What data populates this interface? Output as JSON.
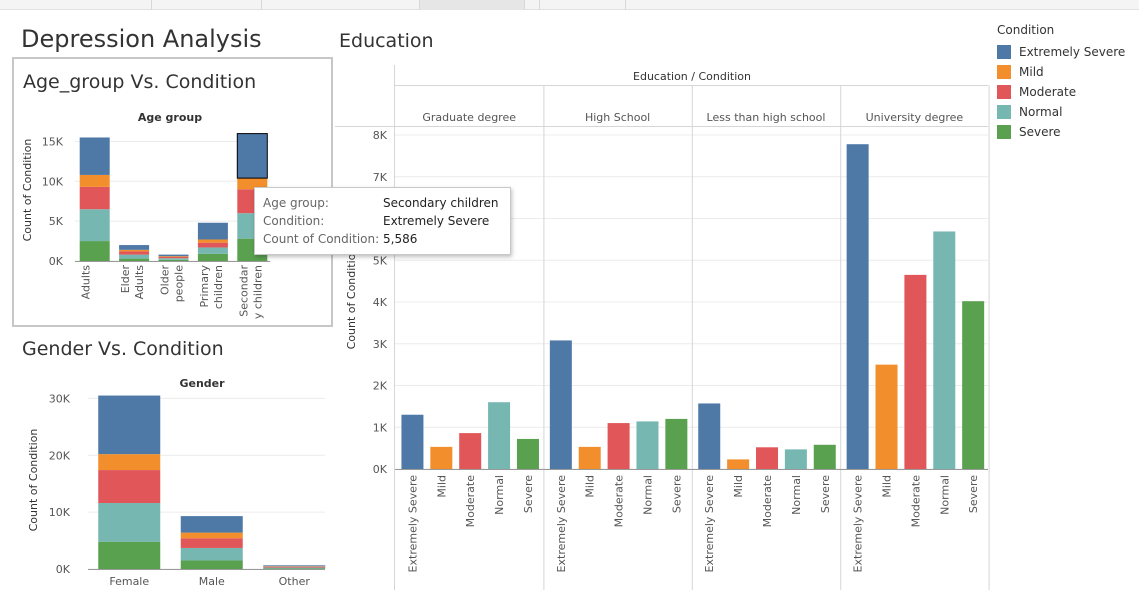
{
  "dashboard_title": "Depression Analysis",
  "colors": {
    "Extremely Severe": "#4e79a7",
    "Mild": "#f28e2b",
    "Moderate": "#e15759",
    "Normal": "#76b7b2",
    "Severe": "#59a14f"
  },
  "legend": {
    "title": "Condition",
    "items": [
      "Extremely Severe",
      "Mild",
      "Moderate",
      "Normal",
      "Severe"
    ]
  },
  "tooltip": {
    "rows": [
      {
        "key": "Age group:",
        "value": "Secondary children"
      },
      {
        "key": "Condition:",
        "value": "Extremely Severe"
      },
      {
        "key": "Count of Condition:",
        "value": "5,586"
      }
    ]
  },
  "chart_data": [
    {
      "type": "bar",
      "stacked": true,
      "title": "Age_group Vs. Condition",
      "column_header": "Age group",
      "ylabel": "Count of Condition",
      "ylim": [
        0,
        16500
      ],
      "yticks": [
        {
          "value": 0,
          "label": "0K"
        },
        {
          "value": 5000,
          "label": "5K"
        },
        {
          "value": 10000,
          "label": "10K"
        },
        {
          "value": 15000,
          "label": "15K"
        }
      ],
      "categories": [
        "Adults",
        "Elder Adults",
        "Older people",
        "Primary children",
        "Secondary children"
      ],
      "category_labels": [
        [
          "Adults"
        ],
        [
          "Elder",
          "Adults"
        ],
        [
          "Older",
          "people"
        ],
        [
          "Primary",
          "children"
        ],
        [
          "Secondar",
          "y children"
        ]
      ],
      "highlight": {
        "category": "Secondary children",
        "series": "Extremely Severe"
      },
      "series": [
        {
          "name": "Severe",
          "values": [
            2500,
            300,
            150,
            900,
            2800
          ]
        },
        {
          "name": "Normal",
          "values": [
            4000,
            500,
            200,
            800,
            3200
          ]
        },
        {
          "name": "Moderate",
          "values": [
            2800,
            400,
            150,
            600,
            3000
          ]
        },
        {
          "name": "Mild",
          "values": [
            1500,
            200,
            100,
            400,
            1400
          ]
        },
        {
          "name": "Extremely Severe",
          "values": [
            4700,
            600,
            200,
            2100,
            5586
          ]
        }
      ]
    },
    {
      "type": "bar",
      "stacked": true,
      "title": "Gender Vs. Condition",
      "column_header": "Gender",
      "ylabel": "Count of Condition",
      "ylim": [
        0,
        31000
      ],
      "yticks": [
        {
          "value": 0,
          "label": "0K"
        },
        {
          "value": 10000,
          "label": "10K"
        },
        {
          "value": 20000,
          "label": "20K"
        },
        {
          "value": 30000,
          "label": "30K"
        }
      ],
      "categories": [
        "Female",
        "Male",
        "Other"
      ],
      "series": [
        {
          "name": "Severe",
          "values": [
            4800,
            1500,
            100
          ]
        },
        {
          "name": "Normal",
          "values": [
            6800,
            2200,
            150
          ]
        },
        {
          "name": "Moderate",
          "values": [
            5800,
            1700,
            150
          ]
        },
        {
          "name": "Mild",
          "values": [
            2800,
            1000,
            80
          ]
        },
        {
          "name": "Extremely Severe",
          "values": [
            10300,
            2900,
            170
          ]
        }
      ]
    },
    {
      "type": "bar",
      "title": "Education",
      "header": "Education / Condition",
      "ylabel": "Count of Condition",
      "ylim": [
        0,
        8300
      ],
      "yticks": [
        {
          "value": 0,
          "label": "0K"
        },
        {
          "value": 1000,
          "label": "1K"
        },
        {
          "value": 2000,
          "label": "2K"
        },
        {
          "value": 3000,
          "label": "3K"
        },
        {
          "value": 4000,
          "label": "4K"
        },
        {
          "value": 5000,
          "label": "5K"
        },
        {
          "value": 6000,
          "label": "6K"
        },
        {
          "value": 7000,
          "label": "7K"
        },
        {
          "value": 8000,
          "label": "8K"
        }
      ],
      "categories": [
        "Extremely Severe",
        "Mild",
        "Moderate",
        "Normal",
        "Severe"
      ],
      "panels": [
        {
          "name": "Graduate degree",
          "values": [
            1300,
            530,
            860,
            1600,
            720
          ]
        },
        {
          "name": "High School",
          "values": [
            3080,
            530,
            1100,
            1140,
            1200
          ]
        },
        {
          "name": "Less than high school",
          "values": [
            1570,
            230,
            520,
            470,
            580
          ]
        },
        {
          "name": "University degree",
          "values": [
            7780,
            2500,
            4650,
            5690,
            4020
          ]
        }
      ]
    }
  ]
}
